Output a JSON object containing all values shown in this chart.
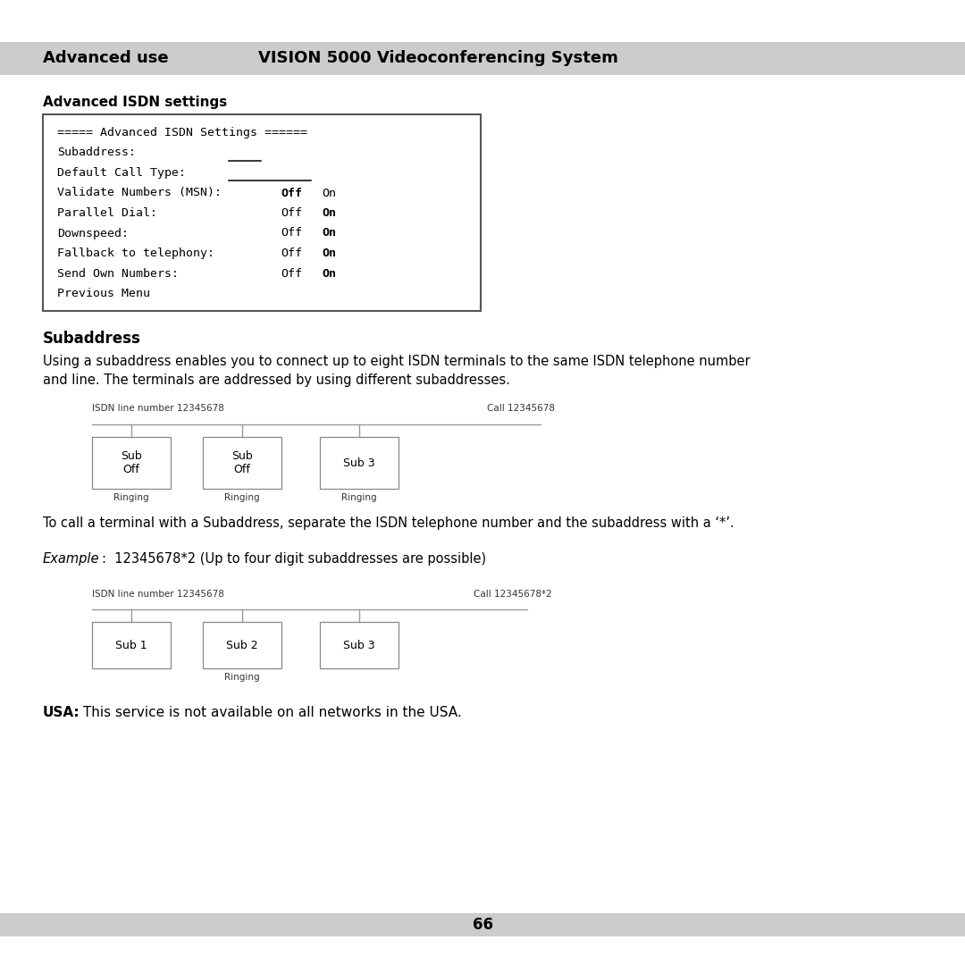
{
  "header_text_left": "Advanced use",
  "header_text_right": "VISION 5000 Videoconferencing System",
  "header_bg": "#cccccc",
  "section1_title": "Advanced ISDN settings",
  "section2_title": "Subaddress",
  "para1_line1": "Using a subaddress enables you to connect up to eight ISDN terminals to the same ISDN telephone number",
  "para1_line2": "and line. The terminals are addressed by using different subaddresses.",
  "diag1_label_left": "ISDN line number 12345678",
  "diag1_label_right": "Call 12345678",
  "diag1_boxes": [
    [
      "Sub\nOff",
      "Ringing"
    ],
    [
      "Sub\nOff",
      "Ringing"
    ],
    [
      "Sub 3",
      "Ringing"
    ]
  ],
  "call_text": "To call a terminal with a Subaddress, separate the ISDN telephone number and the subaddress with a ‘*’.",
  "example_italic": "Example",
  "example_rest": ":  12345678*2 (Up to four digit subaddresses are possible)",
  "diag2_label_left": "ISDN line number 12345678",
  "diag2_label_right": "Call 12345678*2",
  "diag2_boxes": [
    [
      "Sub 1",
      ""
    ],
    [
      "Sub 2",
      "Ringing"
    ],
    [
      "Sub 3",
      ""
    ]
  ],
  "usa_bold": "USA:",
  "usa_rest": " This service is not available on all networks in the USA.",
  "page_number": "66",
  "footer_bg": "#cccccc",
  "bg_color": "#ffffff",
  "text_color": "#000000",
  "box_lines": [
    {
      "text": "===== Advanced ISDN Settings ======",
      "off_bold": false,
      "on_bold": false,
      "has_offon": false
    },
    {
      "text": "Subaddress:",
      "has_offon": false,
      "underline_short": true
    },
    {
      "text": "Default Call Type:",
      "has_offon": false,
      "underline_long": true
    },
    {
      "text": "Validate Numbers (MSN):",
      "off_bold": true,
      "on_bold": false,
      "has_offon": true
    },
    {
      "text": "Parallel Dial:",
      "off_bold": false,
      "on_bold": true,
      "has_offon": true
    },
    {
      "text": "Downspeed:",
      "off_bold": false,
      "on_bold": true,
      "has_offon": true
    },
    {
      "text": "Fallback to telephony:",
      "off_bold": false,
      "on_bold": true,
      "has_offon": true
    },
    {
      "text": "Send Own Numbers:",
      "off_bold": false,
      "on_bold": true,
      "has_offon": true
    },
    {
      "text": "Previous Menu",
      "has_offon": false
    }
  ]
}
